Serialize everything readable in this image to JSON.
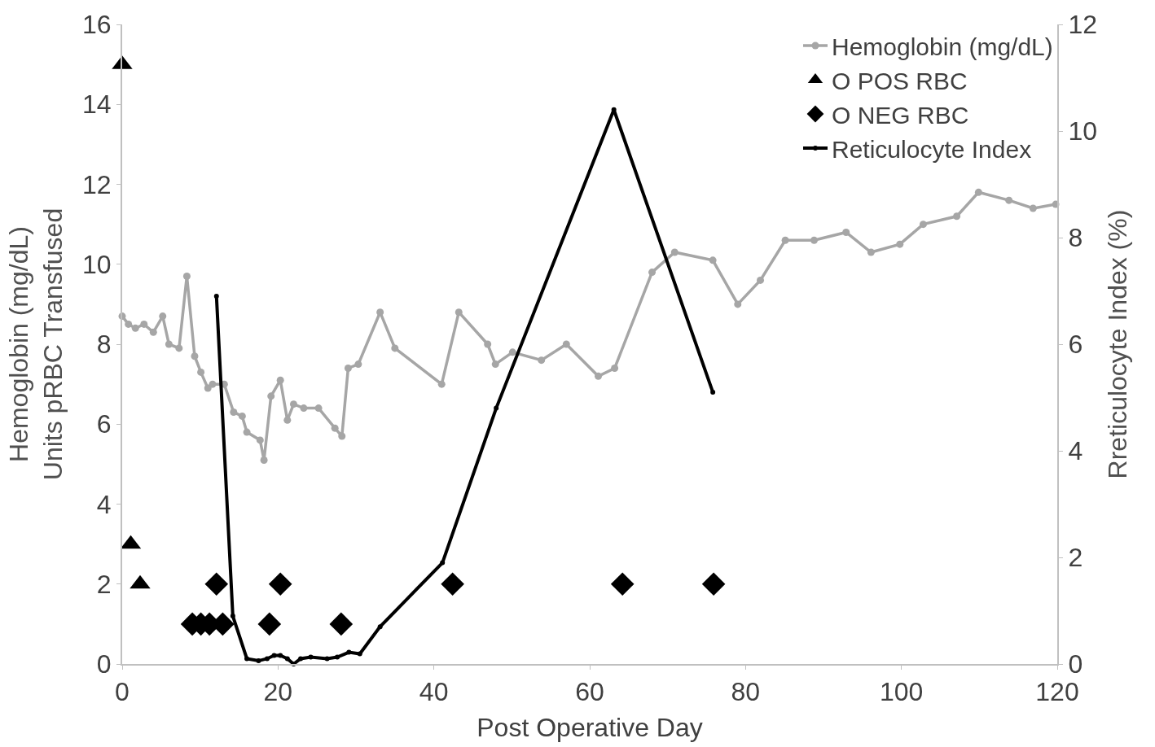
{
  "chart_data": {
    "type": "line",
    "xlabel": "Post Operative Day",
    "ylabel": "Hemoglobin (mg/dL)\nUnits pRBC Transfused",
    "y2label": "Rreticulocyte Index (%)",
    "xlim": [
      0,
      120
    ],
    "xticks": [
      0,
      20,
      40,
      60,
      80,
      100,
      120
    ],
    "ylim": [
      0,
      16
    ],
    "yticks": [
      0,
      2,
      4,
      6,
      8,
      10,
      12,
      14,
      16
    ],
    "y2lim": [
      0,
      12
    ],
    "y2ticks": [
      0,
      2,
      4,
      6,
      8,
      10,
      12
    ],
    "legend": "top right",
    "series": [
      {
        "name": "Hemoglobin (mg/dL)",
        "color": "#a6a6a6",
        "marker": "circle",
        "line_style": "solid",
        "x": [
          0,
          0.8,
          1.7,
          2.8,
          4.0,
          5.2,
          6.0,
          7.3,
          8.3,
          9.3,
          10.1,
          11.0,
          11.6,
          13.1,
          14.3,
          15.4,
          16.0,
          17.7,
          18.2,
          19.1,
          20.3,
          21.2,
          22.0,
          23.3,
          25.2,
          27.3,
          28.2,
          29.0,
          30.3,
          33.1,
          35.0,
          41.0,
          43.2,
          46.9,
          47.9,
          50.1,
          53.8,
          57.0,
          61.1,
          63.2,
          68.0,
          70.9,
          75.8,
          79.0,
          81.9,
          85.1,
          88.8,
          92.9,
          96.1,
          99.8,
          102.8,
          107.1,
          109.9,
          113.8,
          116.9,
          119.8
        ],
        "values": [
          8.7,
          8.5,
          8.4,
          8.5,
          8.3,
          8.7,
          8.0,
          7.9,
          9.7,
          7.7,
          7.3,
          6.9,
          7.0,
          7.0,
          6.3,
          6.2,
          5.8,
          5.6,
          5.1,
          6.7,
          7.1,
          6.1,
          6.5,
          6.4,
          6.4,
          5.9,
          5.7,
          7.4,
          7.5,
          8.8,
          7.9,
          7.0,
          8.8,
          8.0,
          7.5,
          7.8,
          7.6,
          8.0,
          7.2,
          7.4,
          9.8,
          10.3,
          10.1,
          9.0,
          9.6,
          10.6,
          10.6,
          10.8,
          10.3,
          10.5,
          11.0,
          11.2,
          11.8,
          11.6,
          11.4,
          11.5
        ]
      },
      {
        "name": "O POS RBC",
        "type": "scatter",
        "color": "#000000",
        "marker": "triangle",
        "x": [
          0,
          1.1,
          2.3
        ],
        "values": [
          15,
          3,
          2
        ]
      },
      {
        "name": "O NEG RBC",
        "type": "scatter",
        "color": "#000000",
        "marker": "diamond",
        "x": [
          9.0,
          10.1,
          11.2,
          12.1,
          12.9,
          18.9,
          20.3,
          28.1,
          42.4,
          64.2,
          75.9
        ],
        "values": [
          1,
          1,
          1,
          2,
          1,
          1,
          2,
          1,
          2,
          2,
          2
        ]
      },
      {
        "name": "Reticulocyte Index",
        "axis": "y2",
        "color": "#000000",
        "marker": "circle",
        "line_style": "solid",
        "x": [
          12.1,
          14.2,
          16.0,
          17.5,
          18.6,
          19.5,
          20.3,
          21.2,
          22.0,
          22.9,
          24.2,
          26.3,
          27.6,
          29.1,
          30.5,
          33.1,
          41.1,
          48.0,
          63.1,
          75.8
        ],
        "values": [
          6.9,
          0.9,
          0.1,
          0.06,
          0.1,
          0.16,
          0.16,
          0.1,
          0.0,
          0.1,
          0.13,
          0.1,
          0.13,
          0.22,
          0.19,
          0.7,
          1.9,
          4.8,
          10.4,
          5.1
        ]
      }
    ]
  }
}
